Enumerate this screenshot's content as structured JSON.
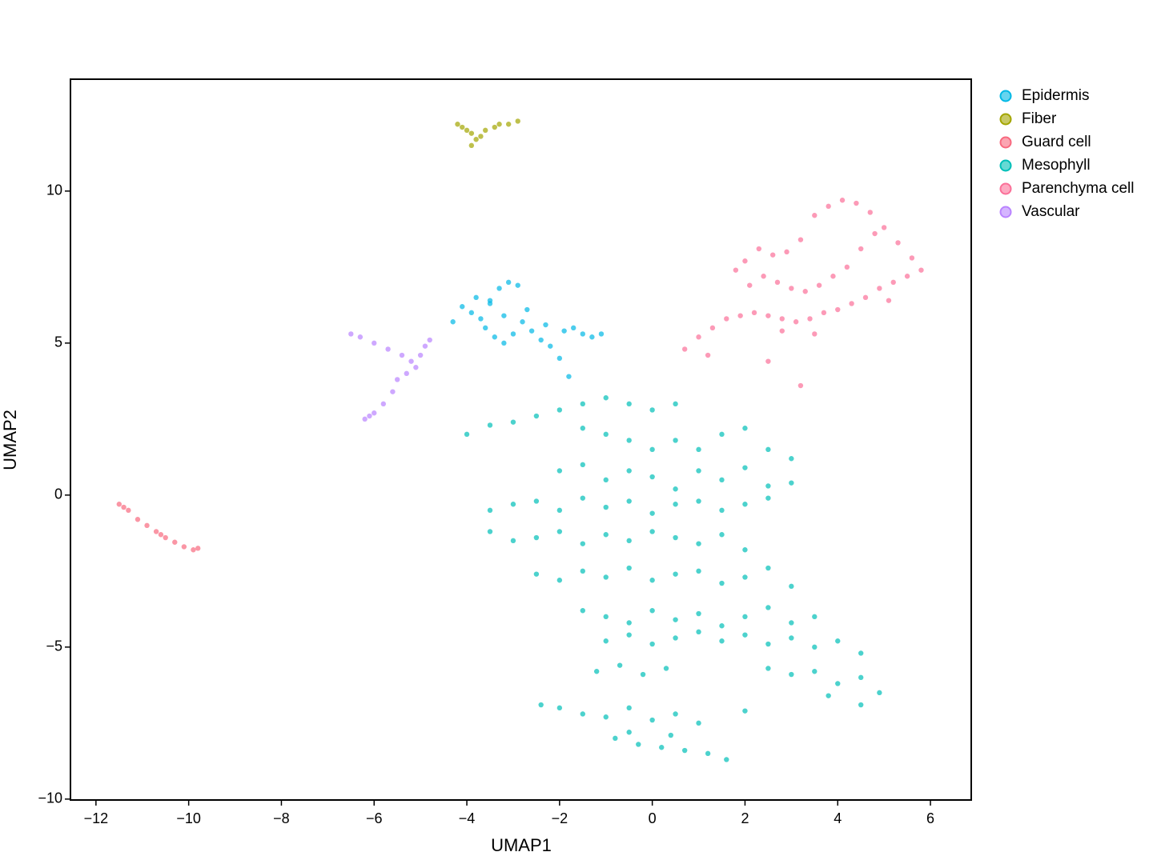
{
  "chart_data": {
    "type": "scatter",
    "x_label": "UMAP1",
    "y_label": "UMAP2",
    "xlim": [
      -12.55,
      6.88
    ],
    "ylim": [
      -10.03,
      13.68
    ],
    "xticks": [
      {
        "value": -12,
        "label": "−12"
      },
      {
        "value": -10,
        "label": "−10"
      },
      {
        "value": -8,
        "label": "−8"
      },
      {
        "value": -6,
        "label": "−6"
      },
      {
        "value": -4,
        "label": "−4"
      },
      {
        "value": -2,
        "label": "−2"
      },
      0,
      2,
      4,
      6
    ],
    "yticks": [
      {
        "value": -10,
        "label": "−10"
      },
      {
        "value": -5,
        "label": "−5"
      },
      0,
      5,
      10
    ],
    "legend": "right",
    "series": [
      {
        "name": "Epidermis",
        "color": "#00B8E5",
        "x": [
          -4.1,
          -3.9,
          -3.7,
          -3.5,
          -3.3,
          -3.1,
          -2.9,
          -3.6,
          -3.4,
          -3.2,
          -3.0,
          -2.8,
          -2.6,
          -2.4,
          -2.2,
          -2.0,
          -1.8,
          -1.5,
          -1.3,
          -1.1,
          -3.8,
          -3.5,
          -3.2,
          -2.7,
          -2.3,
          -1.9,
          -4.3,
          -1.7
        ],
        "values": [
          6.2,
          6.0,
          5.8,
          6.4,
          6.8,
          7.0,
          6.9,
          5.5,
          5.2,
          5.0,
          5.3,
          5.7,
          5.4,
          5.1,
          4.9,
          4.5,
          3.9,
          5.3,
          5.2,
          5.3,
          6.5,
          6.3,
          5.9,
          6.1,
          5.6,
          5.4,
          5.7,
          5.5
        ]
      },
      {
        "name": "Fiber",
        "color": "#A3A500",
        "x": [
          -4.1,
          -3.9,
          -3.8,
          -3.6,
          -3.4,
          -3.1,
          -2.9,
          -4.2,
          -3.9,
          -3.7,
          -4.0,
          -3.3
        ],
        "values": [
          12.1,
          11.9,
          11.7,
          12.0,
          12.1,
          12.2,
          12.3,
          12.2,
          11.5,
          11.8,
          12.0,
          12.2
        ]
      },
      {
        "name": "Guard cell",
        "color": "#F8697F",
        "x": [
          -11.5,
          -11.3,
          -11.1,
          -10.9,
          -10.7,
          -10.5,
          -10.3,
          -10.1,
          -9.9,
          -9.8,
          -11.4,
          -10.6
        ],
        "values": [
          -0.3,
          -0.5,
          -0.8,
          -1.0,
          -1.2,
          -1.4,
          -1.55,
          -1.7,
          -1.8,
          -1.75,
          -0.4,
          -1.3
        ]
      },
      {
        "name": "Mesophyll",
        "color": "#00BFB8",
        "x": [
          -4.0,
          -3.5,
          -3.0,
          -2.5,
          -2.0,
          -1.5,
          -1.0,
          -0.5,
          0,
          0.5,
          -1.5,
          -1.0,
          -0.5,
          0,
          0.5,
          1.0,
          1.5,
          2.0,
          2.5,
          3.0,
          -2.0,
          -1.5,
          -1.0,
          -0.5,
          0,
          0.5,
          1.0,
          1.5,
          2.0,
          2.5,
          3.0,
          -3.5,
          -3.0,
          -2.5,
          -2.0,
          -1.5,
          -1.0,
          -0.5,
          0,
          0.5,
          1.0,
          1.5,
          2.0,
          2.5,
          -3.5,
          -3.0,
          -2.5,
          -2.0,
          -1.5,
          -1.0,
          -0.5,
          0,
          0.5,
          1.0,
          1.5,
          2.0,
          -2.5,
          -2.0,
          -1.5,
          -1.0,
          -0.5,
          0,
          0.5,
          1.0,
          1.5,
          2.0,
          2.5,
          3.0,
          -1.5,
          -1.0,
          -0.5,
          0,
          0.5,
          1.0,
          1.5,
          2.0,
          2.5,
          3.0,
          3.5,
          -1.0,
          -0.5,
          0,
          0.5,
          1.0,
          1.5,
          2.0,
          2.5,
          3.0,
          3.5,
          4.0,
          4.5,
          -1.2,
          -0.7,
          -0.2,
          0.3,
          2.5,
          3.0,
          3.5,
          4.0,
          4.5,
          4.9,
          4.5,
          3.8,
          -2.4,
          -2.0,
          -1.5,
          -1.0,
          -0.5,
          0,
          0.5,
          1.0,
          2.0,
          -0.8,
          -0.3,
          0.2,
          0.7,
          1.2,
          1.6,
          -0.5,
          0.4
        ],
        "values": [
          2.0,
          2.3,
          2.4,
          2.6,
          2.8,
          3.0,
          3.2,
          3.0,
          2.8,
          3.0,
          2.2,
          2.0,
          1.8,
          1.5,
          1.8,
          1.5,
          2.0,
          2.2,
          1.5,
          1.2,
          0.8,
          1.0,
          0.5,
          0.8,
          0.6,
          0.2,
          0.8,
          0.5,
          0.9,
          0.3,
          0.4,
          -0.5,
          -0.3,
          -0.2,
          -0.5,
          -0.1,
          -0.4,
          -0.2,
          -0.6,
          -0.3,
          -0.2,
          -0.5,
          -0.3,
          -0.1,
          -1.2,
          -1.5,
          -1.4,
          -1.2,
          -1.6,
          -1.3,
          -1.5,
          -1.2,
          -1.4,
          -1.6,
          -1.3,
          -1.8,
          -2.6,
          -2.8,
          -2.5,
          -2.7,
          -2.4,
          -2.8,
          -2.6,
          -2.5,
          -2.9,
          -2.7,
          -2.4,
          -3.0,
          -3.8,
          -4.0,
          -4.2,
          -3.8,
          -4.1,
          -3.9,
          -4.3,
          -4.0,
          -3.7,
          -4.2,
          -4.0,
          -4.8,
          -4.6,
          -4.9,
          -4.7,
          -4.5,
          -4.8,
          -4.6,
          -4.9,
          -4.7,
          -5.0,
          -4.8,
          -5.2,
          -5.8,
          -5.6,
          -5.9,
          -5.7,
          -5.7,
          -5.9,
          -5.8,
          -6.2,
          -6.0,
          -6.5,
          -6.9,
          -6.6,
          -6.9,
          -7.0,
          -7.2,
          -7.3,
          -7.0,
          -7.4,
          -7.2,
          -7.5,
          -7.1,
          -8.0,
          -8.2,
          -8.3,
          -8.4,
          -8.5,
          -8.7,
          -7.8,
          -7.9
        ]
      },
      {
        "name": "Parenchyma cell",
        "color": "#FB6F98",
        "x": [
          0.7,
          1.0,
          1.3,
          1.6,
          1.9,
          2.2,
          2.5,
          2.8,
          3.1,
          3.4,
          3.7,
          4.0,
          4.3,
          4.6,
          4.9,
          5.2,
          5.5,
          5.8,
          5.6,
          5.3,
          5.0,
          4.7,
          4.4,
          4.1,
          3.8,
          3.5,
          3.2,
          2.9,
          2.6,
          2.3,
          2.0,
          1.8,
          2.1,
          2.4,
          2.7,
          3.0,
          3.3,
          3.6,
          3.9,
          4.2,
          4.5,
          4.8,
          5.1,
          2.5,
          3.2,
          1.2,
          2.8,
          3.5
        ],
        "values": [
          4.8,
          5.2,
          5.5,
          5.8,
          5.9,
          6.0,
          5.9,
          5.8,
          5.7,
          5.8,
          6.0,
          6.1,
          6.3,
          6.5,
          6.8,
          7.0,
          7.2,
          7.4,
          7.8,
          8.3,
          8.8,
          9.3,
          9.6,
          9.7,
          9.5,
          9.2,
          8.4,
          8.0,
          7.9,
          8.1,
          7.7,
          7.4,
          6.9,
          7.2,
          7.0,
          6.8,
          6.7,
          6.9,
          7.2,
          7.5,
          8.1,
          8.6,
          6.4,
          4.4,
          3.6,
          4.6,
          5.4,
          5.3
        ]
      },
      {
        "name": "Vascular",
        "color": "#B983FF",
        "x": [
          -6.5,
          -6.3,
          -6.0,
          -5.7,
          -5.4,
          -5.2,
          -5.0,
          -4.9,
          -4.8,
          -5.1,
          -5.3,
          -5.6,
          -5.8,
          -6.0,
          -6.2,
          -6.1,
          -5.5
        ],
        "values": [
          5.3,
          5.2,
          5.0,
          4.8,
          4.6,
          4.4,
          4.6,
          4.9,
          5.1,
          4.2,
          4.0,
          3.4,
          3.0,
          2.7,
          2.5,
          2.6,
          3.8
        ]
      }
    ]
  }
}
